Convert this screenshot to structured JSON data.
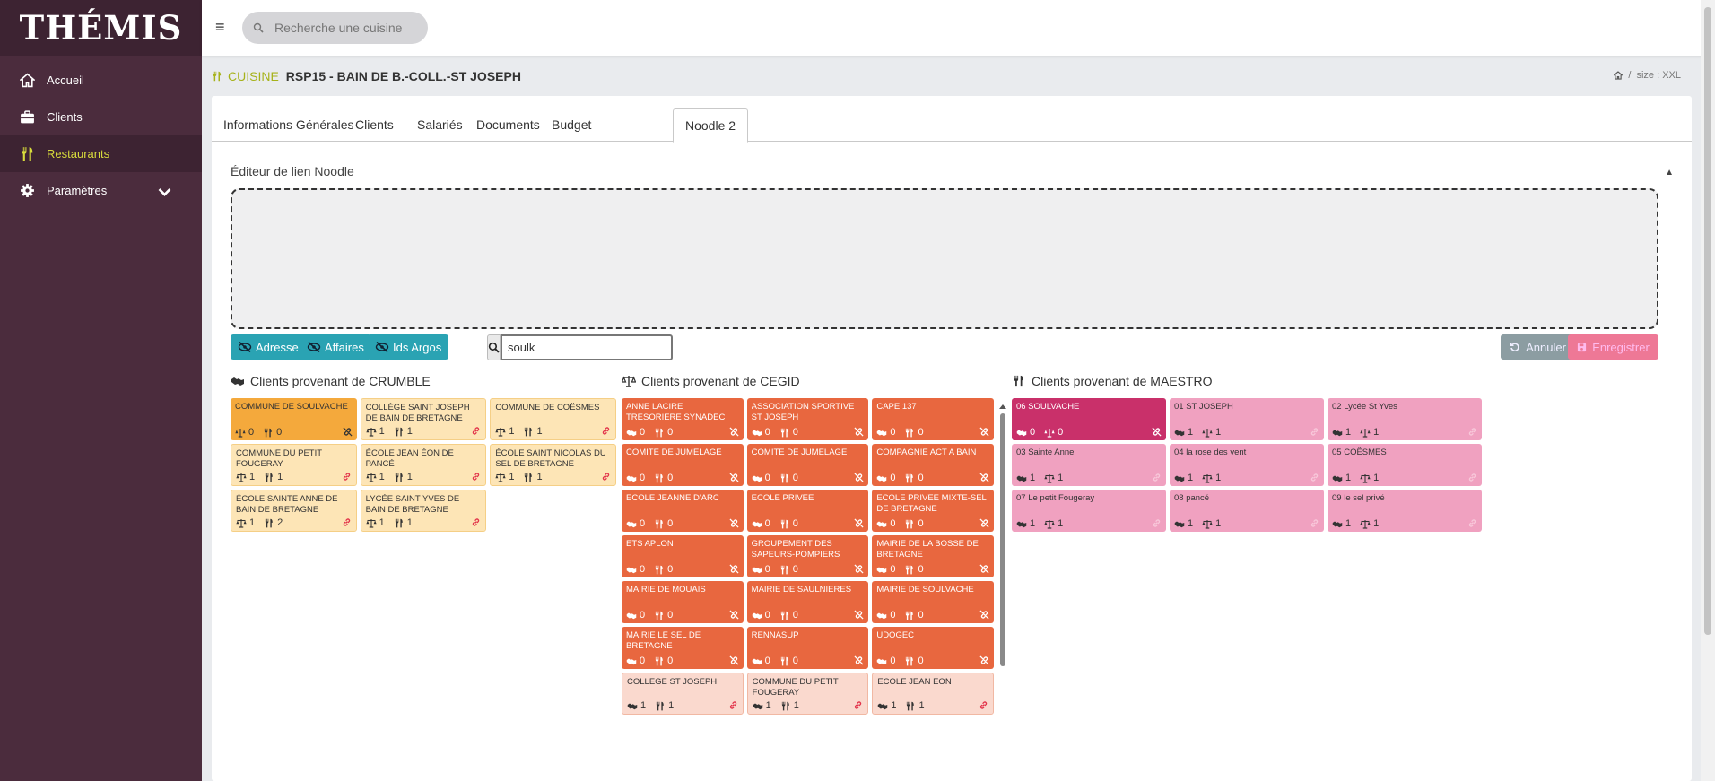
{
  "app": {
    "logo": "THÉMIS"
  },
  "sidebar": {
    "items": [
      {
        "label": "Accueil",
        "icon": "home-icon"
      },
      {
        "label": "Clients",
        "icon": "briefcase-icon"
      },
      {
        "label": "Restaurants",
        "icon": "utensils-icon"
      },
      {
        "label": "Paramètres",
        "icon": "gear-icon"
      }
    ]
  },
  "topbar": {
    "search_placeholder": "Recherche une cuisine"
  },
  "breadcrumb": {
    "label": "CUISINE",
    "name": "RSP15 - BAIN DE B.-COLL.-ST JOSEPH",
    "size": "size : XXL"
  },
  "tabs": [
    "Informations Générales",
    "Clients",
    "Salariés",
    "Documents",
    "Budget",
    "Noodle 2"
  ],
  "editor": {
    "title": "Éditeur de lien Noodle"
  },
  "toolbar": {
    "btn_adresse": "Adresse",
    "btn_affaires": "Affaires",
    "btn_ids": "Ids Argos",
    "filter_value": "soulk",
    "btn_cancel": "Annuler",
    "btn_save": "Enregistrer"
  },
  "crumble": {
    "title": "Clients provenant de CRUMBLE",
    "tiles": [
      {
        "name": "COMMUNE DE SOULVACHE",
        "a": "0",
        "b": "0",
        "style": "orange",
        "linked": false
      },
      {
        "name": "COLLÈGE SAINT JOSEPH DE BAIN DE BRETAGNE",
        "a": "1",
        "b": "1",
        "style": "beige",
        "linked": true
      },
      {
        "name": "COMMUNE DE COËSMES",
        "a": "1",
        "b": "1",
        "style": "beige",
        "linked": true
      },
      {
        "name": "COMMUNE DU PETIT FOUGERAY",
        "a": "1",
        "b": "1",
        "style": "beige",
        "linked": true
      },
      {
        "name": "ÉCOLE JEAN ÉON DE PANCÉ",
        "a": "1",
        "b": "1",
        "style": "beige",
        "linked": true
      },
      {
        "name": "ÉCOLE SAINT NICOLAS DU SEL DE BRETAGNE",
        "a": "1",
        "b": "1",
        "style": "beige",
        "linked": true
      },
      {
        "name": "ÉCOLE SAINTE ANNE DE BAIN DE BRETAGNE",
        "a": "1",
        "b": "2",
        "style": "beige",
        "linked": true
      },
      {
        "name": "LYCÉE SAINT YVES DE BAIN DE BRETAGNE",
        "a": "1",
        "b": "1",
        "style": "beige",
        "linked": true
      }
    ]
  },
  "cegid": {
    "title": "Clients provenant de CEGID",
    "tiles": [
      {
        "name": "ANNE LACIRE TRESORIERE SYNADEC",
        "a": "0",
        "b": "0",
        "style": "red",
        "linked": false
      },
      {
        "name": "ASSOCIATION SPORTIVE ST JOSEPH",
        "a": "0",
        "b": "0",
        "style": "red",
        "linked": false
      },
      {
        "name": "CAPE 137",
        "a": "0",
        "b": "0",
        "style": "red",
        "linked": false
      },
      {
        "name": "COMITE DE JUMELAGE",
        "a": "0",
        "b": "0",
        "style": "red",
        "linked": false
      },
      {
        "name": "COMITE DE JUMELAGE",
        "a": "0",
        "b": "0",
        "style": "red",
        "linked": false
      },
      {
        "name": "COMPAGNIE ACT A BAIN",
        "a": "0",
        "b": "0",
        "style": "red",
        "linked": false
      },
      {
        "name": "ECOLE JEANNE D'ARC",
        "a": "0",
        "b": "0",
        "style": "red",
        "linked": false
      },
      {
        "name": "ECOLE PRIVEE",
        "a": "0",
        "b": "0",
        "style": "red",
        "linked": false
      },
      {
        "name": "ECOLE PRIVEE MIXTE-SEL DE BRETAGNE",
        "a": "0",
        "b": "0",
        "style": "red",
        "linked": false
      },
      {
        "name": "ETS APLON",
        "a": "0",
        "b": "0",
        "style": "red",
        "linked": false
      },
      {
        "name": "GROUPEMENT DES SAPEURS-POMPIERS",
        "a": "0",
        "b": "0",
        "style": "red",
        "linked": false
      },
      {
        "name": "MAIRIE DE LA BOSSE DE BRETAGNE",
        "a": "0",
        "b": "0",
        "style": "red",
        "linked": false
      },
      {
        "name": "MAIRIE DE MOUAIS",
        "a": "0",
        "b": "0",
        "style": "red",
        "linked": false
      },
      {
        "name": "MAIRIE DE SAULNIERES",
        "a": "0",
        "b": "0",
        "style": "red",
        "linked": false
      },
      {
        "name": "MAIRIE DE SOULVACHE",
        "a": "0",
        "b": "0",
        "style": "red",
        "linked": false
      },
      {
        "name": "MAIRIE LE SEL DE BRETAGNE",
        "a": "0",
        "b": "0",
        "style": "red",
        "linked": false
      },
      {
        "name": "RENNASUP",
        "a": "0",
        "b": "0",
        "style": "red",
        "linked": false
      },
      {
        "name": "UDOGEC",
        "a": "0",
        "b": "0",
        "style": "red",
        "linked": false
      },
      {
        "name": "COLLEGE ST JOSEPH",
        "a": "1",
        "b": "1",
        "style": "pale",
        "linked": true
      },
      {
        "name": "COMMUNE DU PETIT FOUGERAY",
        "a": "1",
        "b": "1",
        "style": "pale",
        "linked": true
      },
      {
        "name": "ECOLE JEAN EON",
        "a": "1",
        "b": "1",
        "style": "pale",
        "linked": true
      }
    ]
  },
  "maestro": {
    "title": "Clients provenant de MAESTRO",
    "tiles": [
      {
        "name": "06 SOULVACHE",
        "a": "0",
        "b": "0",
        "style": "mag",
        "linked": false
      },
      {
        "name": "01 ST JOSEPH",
        "a": "1",
        "b": "1",
        "style": "pink",
        "linked": true
      },
      {
        "name": "02 Lycée St Yves",
        "a": "1",
        "b": "1",
        "style": "pink",
        "linked": true
      },
      {
        "name": "03 Sainte Anne",
        "a": "1",
        "b": "1",
        "style": "pink",
        "linked": true
      },
      {
        "name": "04 la rose des vent",
        "a": "1",
        "b": "1",
        "style": "pink",
        "linked": true
      },
      {
        "name": "05 COËSMES",
        "a": "1",
        "b": "1",
        "style": "pink",
        "linked": true
      },
      {
        "name": "07 Le petit Fougeray",
        "a": "1",
        "b": "1",
        "style": "pink",
        "linked": true
      },
      {
        "name": "08 pancé",
        "a": "1",
        "b": "1",
        "style": "pink",
        "linked": true
      },
      {
        "name": "09 le sel privé",
        "a": "1",
        "b": "1",
        "style": "pink",
        "linked": true
      }
    ]
  },
  "colors": {
    "sidebar": "#4b2c3d",
    "accent": "#d8dc3c",
    "teal": "#2aa3b3",
    "orange": "#f4a93c",
    "red": "#e8673f",
    "magenta": "#c9306a",
    "pink": "#f0a1c0"
  }
}
